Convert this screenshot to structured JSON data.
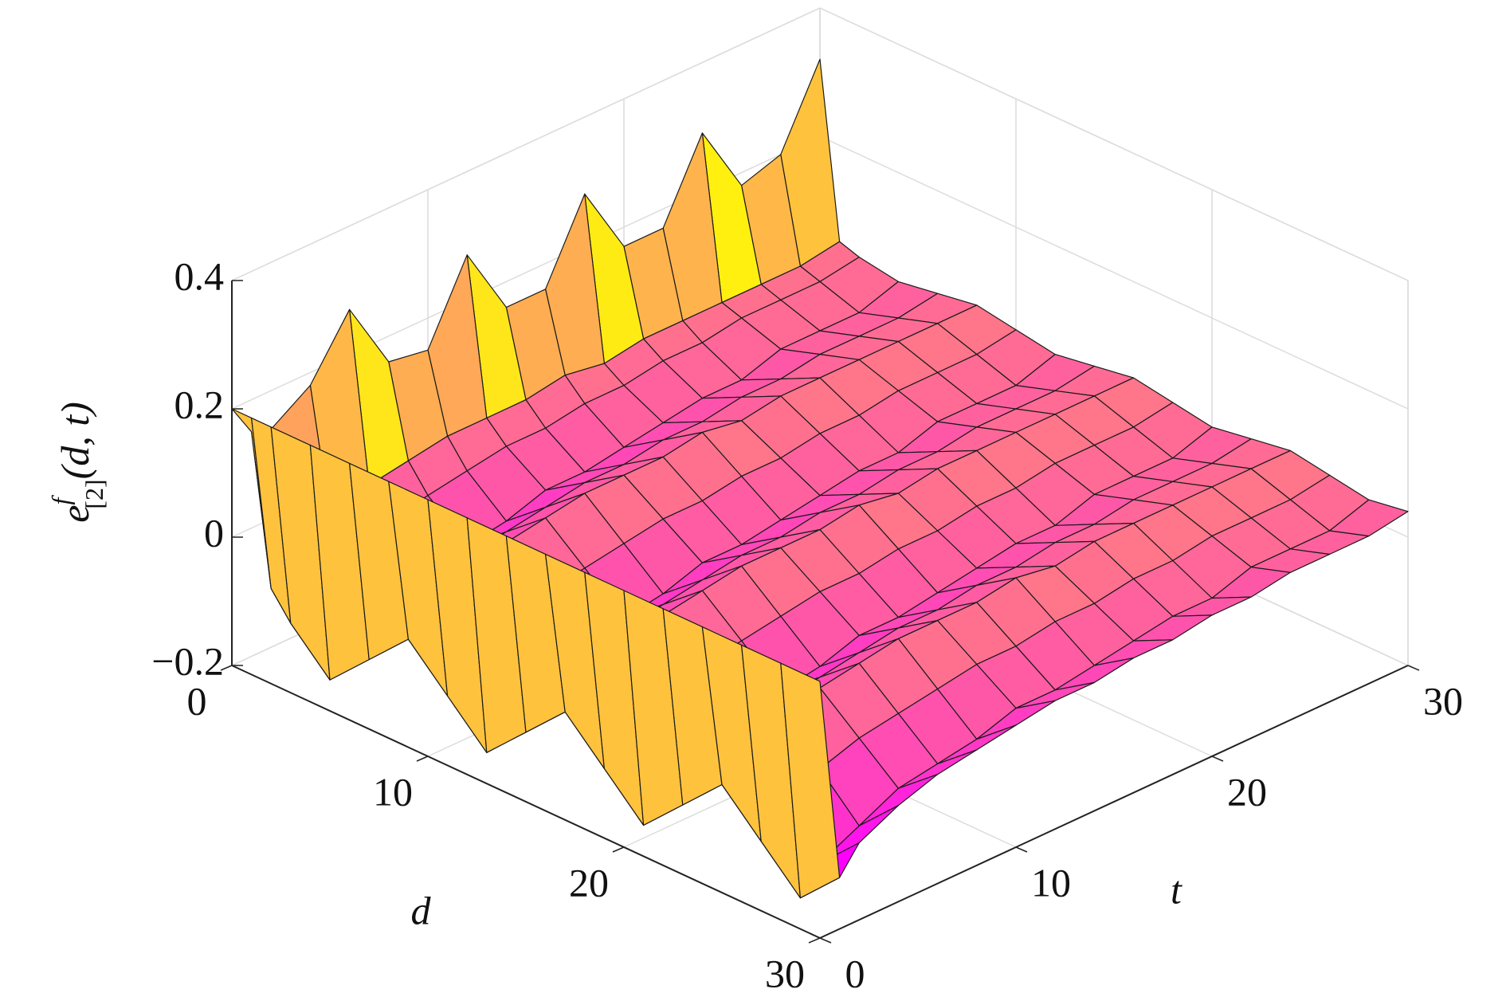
{
  "chart_data": {
    "type": "surface",
    "xlabel": "d",
    "ylabel": "t",
    "zlabel": {
      "base": "e",
      "sup": "f",
      "sub": "[2]",
      "args": "(d, t)"
    },
    "x": [
      0,
      1,
      2,
      4,
      6,
      8,
      10,
      12,
      14,
      16,
      18,
      20,
      22,
      24,
      26,
      28,
      30
    ],
    "y": [
      0,
      1,
      2,
      4,
      6,
      8,
      10,
      12,
      14,
      16,
      18,
      20,
      22,
      24,
      26,
      28,
      30
    ],
    "z": [
      [
        0.2,
        0.15,
        0.14,
        0.18,
        0.27,
        0.16,
        0.15,
        0.27,
        0.16,
        0.16,
        0.28,
        0.17,
        0.17,
        0.29,
        0.18,
        0.2,
        0.32
      ],
      [
        0.2,
        -0.08,
        -0.04,
        -0.01,
        0.01,
        0.02,
        0.03,
        0.03,
        0.03,
        0.04,
        0.03,
        0.04,
        0.04,
        0.04,
        0.04,
        0.04,
        0.05
      ],
      [
        0.2,
        -0.12,
        -0.08,
        -0.05,
        -0.03,
        -0.02,
        -0.01,
        0,
        0,
        0.01,
        0.01,
        0.02,
        0.02,
        0.03,
        0.03,
        0.03,
        0.04
      ],
      [
        0.2,
        -0.18,
        -0.14,
        -0.11,
        -0.08,
        -0.07,
        -0.06,
        -0.04,
        -0.04,
        -0.03,
        -0.02,
        -0.01,
        -0.01,
        0.01,
        0.01,
        0.01,
        0.03
      ],
      [
        0.2,
        -0.12,
        -0.08,
        -0.05,
        -0.03,
        -0.02,
        -0.01,
        0,
        0,
        0.01,
        0.01,
        0.02,
        0.02,
        0.03,
        0.03,
        0.03,
        0.04
      ],
      [
        0.2,
        -0.06,
        -0.02,
        0.01,
        0.02,
        0.03,
        0.04,
        0.04,
        0.04,
        0.05,
        0.04,
        0.05,
        0.05,
        0.05,
        0.05,
        0.05,
        0.05
      ],
      [
        0.2,
        -0.12,
        -0.08,
        -0.05,
        -0.03,
        -0.02,
        -0.01,
        0,
        0,
        0.01,
        0.01,
        0.02,
        0.02,
        0.03,
        0.03,
        0.03,
        0.04
      ],
      [
        0.2,
        -0.18,
        -0.14,
        -0.11,
        -0.08,
        -0.07,
        -0.06,
        -0.04,
        -0.04,
        -0.03,
        -0.02,
        -0.01,
        -0.01,
        0.01,
        0.01,
        0.01,
        0.03
      ],
      [
        0.2,
        -0.12,
        -0.08,
        -0.05,
        -0.03,
        -0.02,
        -0.01,
        0,
        0,
        0.01,
        0.01,
        0.02,
        0.02,
        0.03,
        0.03,
        0.03,
        0.04
      ],
      [
        0.2,
        -0.06,
        -0.02,
        0.01,
        0.02,
        0.03,
        0.04,
        0.04,
        0.04,
        0.05,
        0.04,
        0.05,
        0.05,
        0.05,
        0.05,
        0.05,
        0.05
      ],
      [
        0.2,
        -0.12,
        -0.08,
        -0.05,
        -0.03,
        -0.02,
        -0.01,
        0,
        0,
        0.01,
        0.01,
        0.02,
        0.02,
        0.03,
        0.03,
        0.03,
        0.04
      ],
      [
        0.2,
        -0.18,
        -0.14,
        -0.11,
        -0.08,
        -0.07,
        -0.06,
        -0.04,
        -0.04,
        -0.03,
        -0.02,
        -0.01,
        -0.01,
        0.01,
        0.01,
        0.01,
        0.03
      ],
      [
        0.2,
        -0.12,
        -0.08,
        -0.05,
        -0.03,
        -0.02,
        -0.01,
        0,
        0,
        0.01,
        0.01,
        0.02,
        0.02,
        0.03,
        0.03,
        0.03,
        0.04
      ],
      [
        0.2,
        -0.06,
        -0.02,
        0.01,
        0.02,
        0.03,
        0.04,
        0.04,
        0.04,
        0.05,
        0.04,
        0.05,
        0.05,
        0.05,
        0.05,
        0.05,
        0.05
      ],
      [
        0.2,
        -0.12,
        -0.08,
        -0.05,
        -0.03,
        -0.02,
        -0.01,
        0,
        0,
        0.01,
        0.01,
        0.02,
        0.02,
        0.03,
        0.03,
        0.03,
        0.04
      ],
      [
        0.2,
        -0.18,
        -0.14,
        -0.11,
        -0.08,
        -0.07,
        -0.06,
        -0.04,
        -0.04,
        -0.03,
        -0.02,
        -0.01,
        -0.01,
        0.01,
        0.01,
        0.01,
        0.03
      ],
      [
        0.2,
        -0.12,
        -0.08,
        -0.05,
        -0.03,
        -0.02,
        -0.01,
        0,
        0,
        0.01,
        0.01,
        0.02,
        0.02,
        0.03,
        0.03,
        0.03,
        0.04
      ]
    ],
    "colormap": [
      "#ff00ff",
      "#ffff00"
    ],
    "xlim": [
      0,
      30
    ],
    "xticks": [
      0,
      10,
      20,
      30
    ],
    "ylim": [
      0,
      30
    ],
    "yticks": [
      0,
      10,
      20,
      30
    ],
    "zlim": [
      -0.2,
      0.4
    ],
    "zticks": [
      {
        "value": -0.2,
        "label": "−0.2"
      },
      0,
      0.2,
      0.4
    ],
    "grid": true
  }
}
